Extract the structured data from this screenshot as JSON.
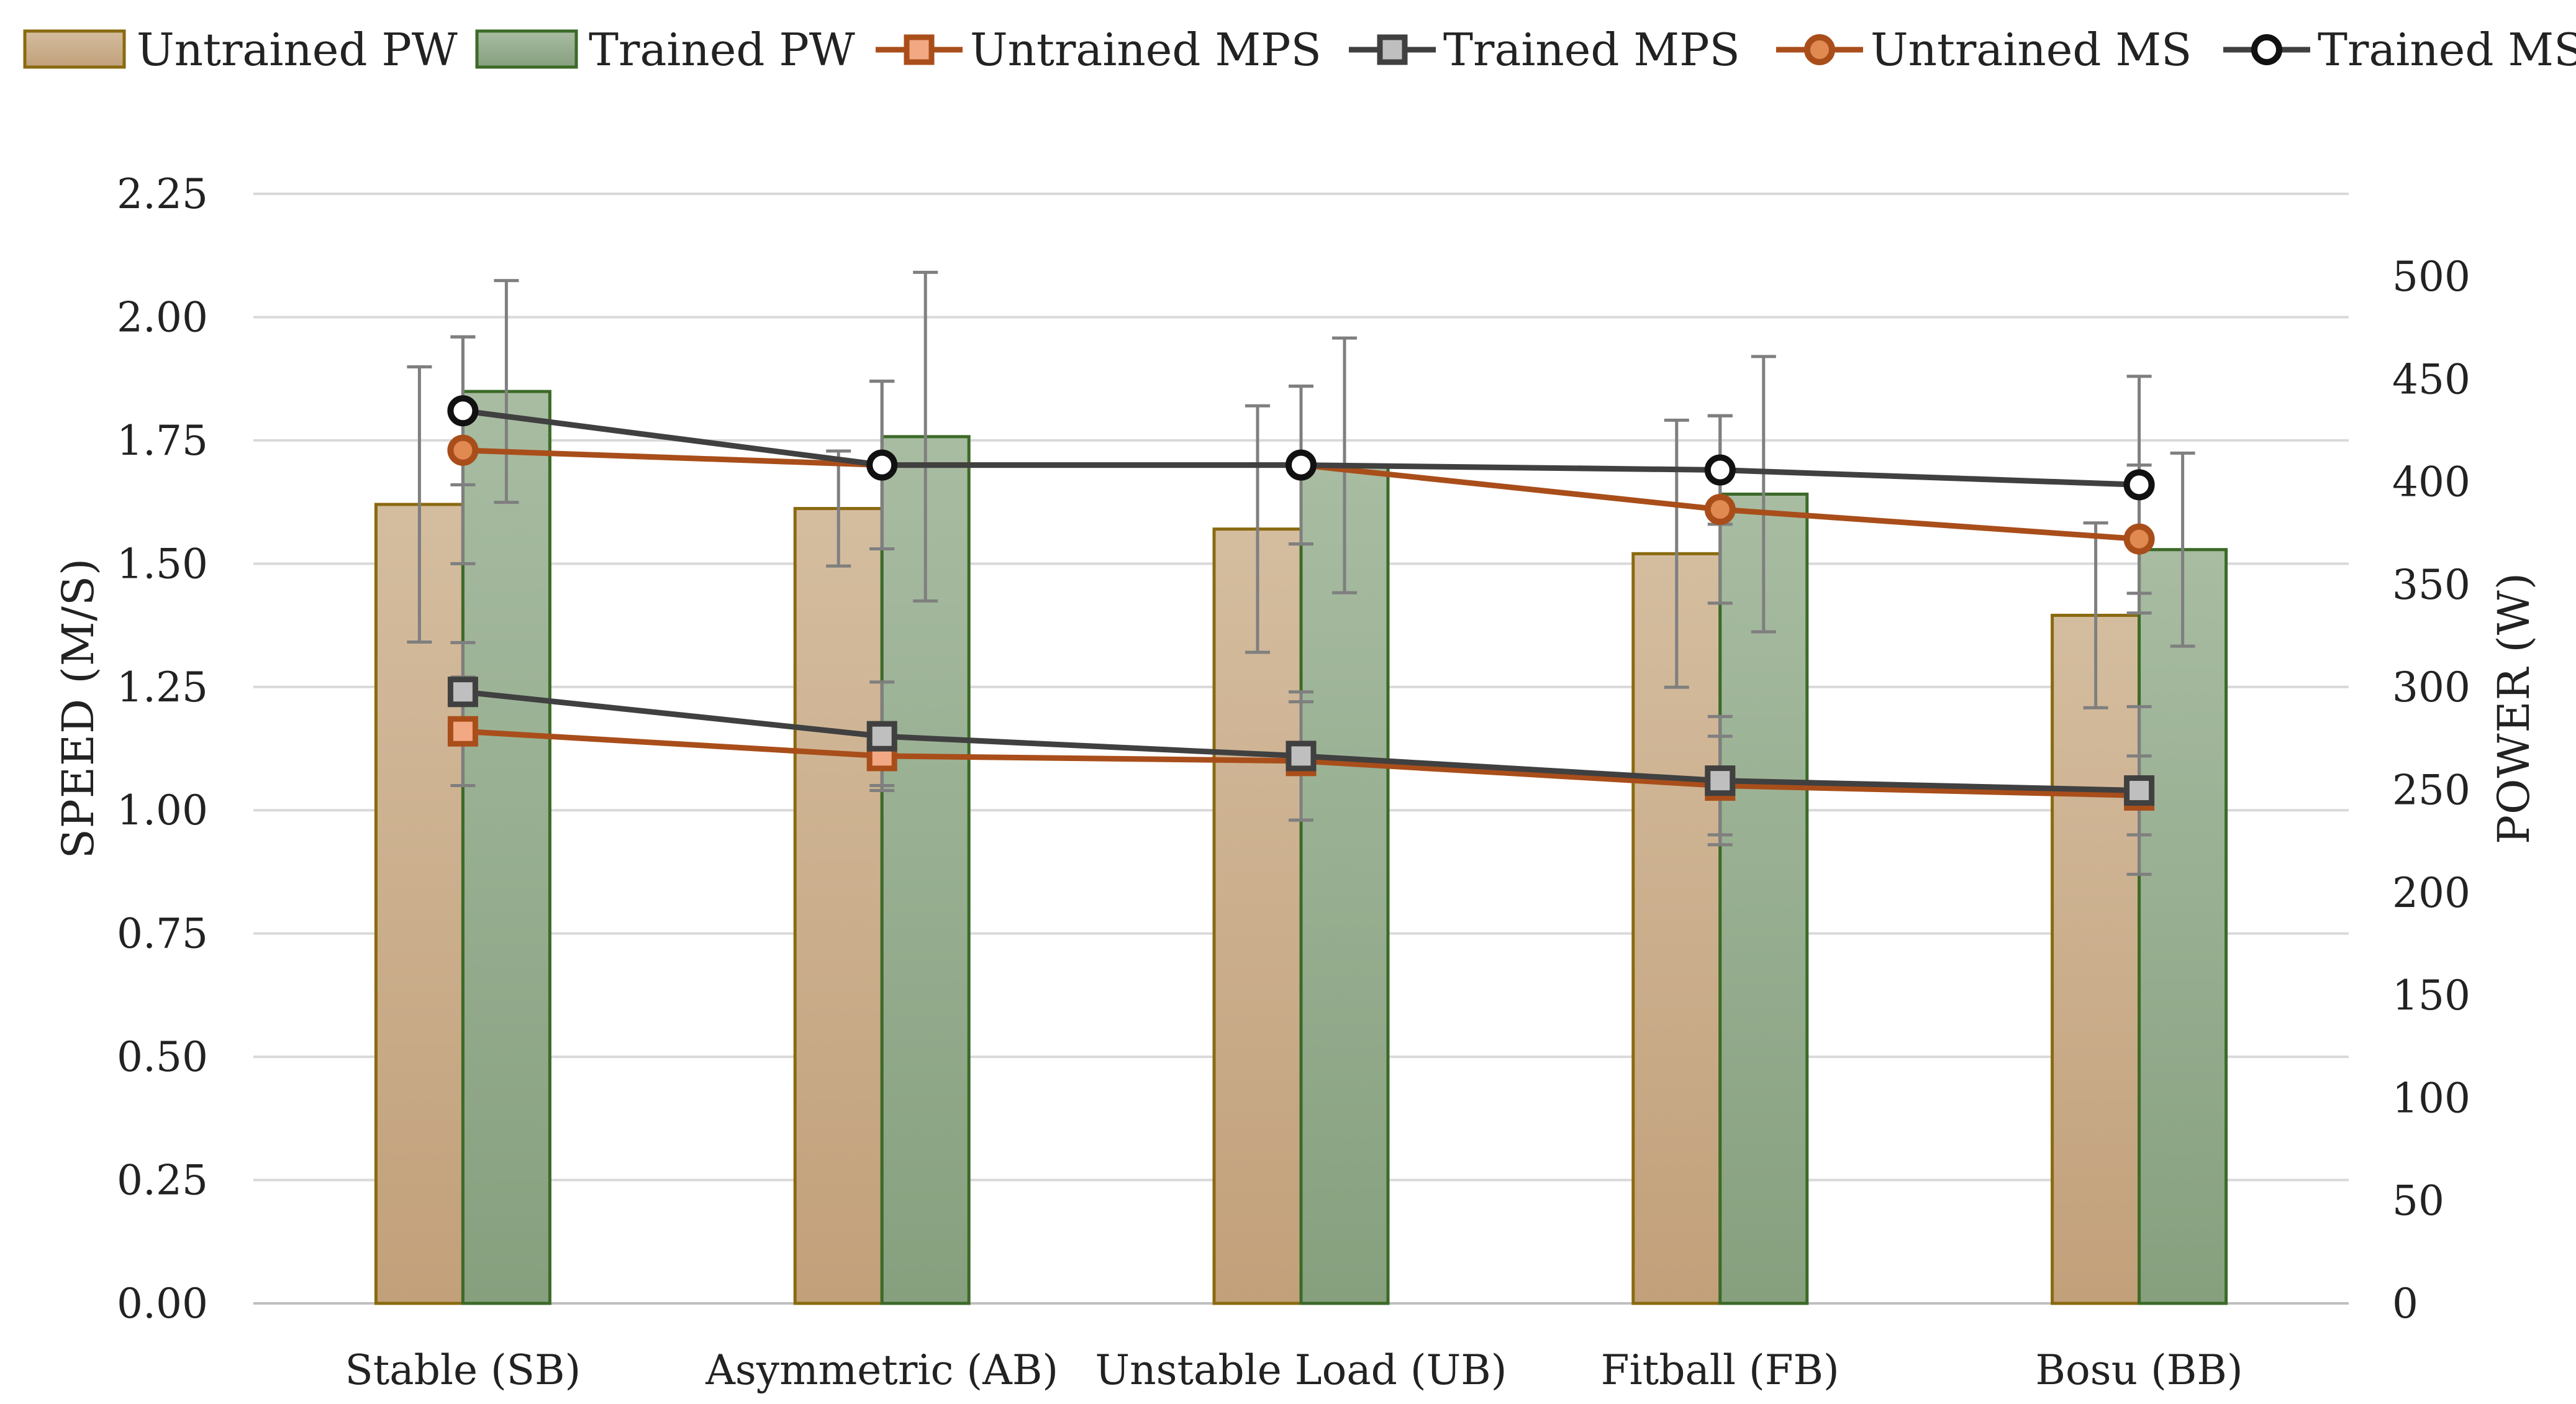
{
  "chart_data": {
    "type": "bar",
    "categories": [
      "Stable (SB)",
      "Asymmetric (AB)",
      "Unstable Load (UB)",
      "Fitball (FB)",
      "Bosu (BB)"
    ],
    "left_axis": {
      "label": "SPEED (M/S)",
      "range": [
        0,
        2.25
      ],
      "ticks": [
        "0.00",
        "0.25",
        "0.50",
        "0.75",
        "1.00",
        "1.25",
        "1.50",
        "1.75",
        "2.00",
        "2.25"
      ],
      "tick_step": 0.25
    },
    "right_axis": {
      "label": "POWER (W)",
      "range": [
        0,
        540
      ],
      "ticks": [
        "0",
        "50",
        "100",
        "150",
        "200",
        "250",
        "300",
        "350",
        "400",
        "450",
        "500"
      ],
      "tick_step": 50
    },
    "grid": true,
    "legend_position": "top",
    "bar_series": [
      {
        "name": "Untrained PW",
        "axis": "right",
        "values": [
          389,
          387,
          377,
          365,
          335
        ],
        "err": [
          67,
          28,
          60,
          65,
          45
        ],
        "fill_top": "#d4bd9f",
        "fill_bottom": "#c2a07a",
        "stroke": "#8a6a10"
      },
      {
        "name": "Trained PW",
        "axis": "right",
        "values": [
          444,
          422,
          408,
          394,
          367
        ],
        "err": [
          54,
          80,
          62,
          67,
          47
        ],
        "fill_top": "#a8bca2",
        "fill_bottom": "#86a07e",
        "stroke": "#3c6a28"
      }
    ],
    "line_series": [
      {
        "name": "Untrained MPS",
        "axis": "left",
        "marker": "square",
        "values": [
          1.16,
          1.11,
          1.1,
          1.05,
          1.03
        ],
        "err": [
          0.11,
          0.06,
          0.12,
          0.1,
          0.08
        ],
        "line": "#a94e1a",
        "marker_fill": "#f2a882",
        "marker_stroke": "#a94e1a"
      },
      {
        "name": "Trained MPS",
        "axis": "left",
        "marker": "square",
        "values": [
          1.24,
          1.15,
          1.11,
          1.06,
          1.04
        ],
        "err": [
          0.1,
          0.11,
          0.13,
          0.13,
          0.17
        ],
        "line": "#404040",
        "marker_fill": "#bfbfbf",
        "marker_stroke": "#404040"
      },
      {
        "name": "Untrained MS",
        "axis": "left",
        "marker": "circle",
        "values": [
          1.73,
          1.7,
          1.7,
          1.61,
          1.55
        ],
        "err": [
          0.23,
          0.17,
          0.16,
          0.19,
          0.15
        ],
        "line": "#a94e1a",
        "marker_fill": "#e08a52",
        "marker_stroke": "#a94e1a"
      },
      {
        "name": "Trained MS",
        "axis": "left",
        "marker": "circle",
        "values": [
          1.81,
          1.7,
          1.7,
          1.69,
          1.66
        ],
        "err": [
          0.15,
          0.17,
          0.16,
          0.11,
          0.22
        ],
        "line": "#404040",
        "marker_fill": "#ffffff",
        "marker_stroke": "#111111"
      }
    ]
  }
}
